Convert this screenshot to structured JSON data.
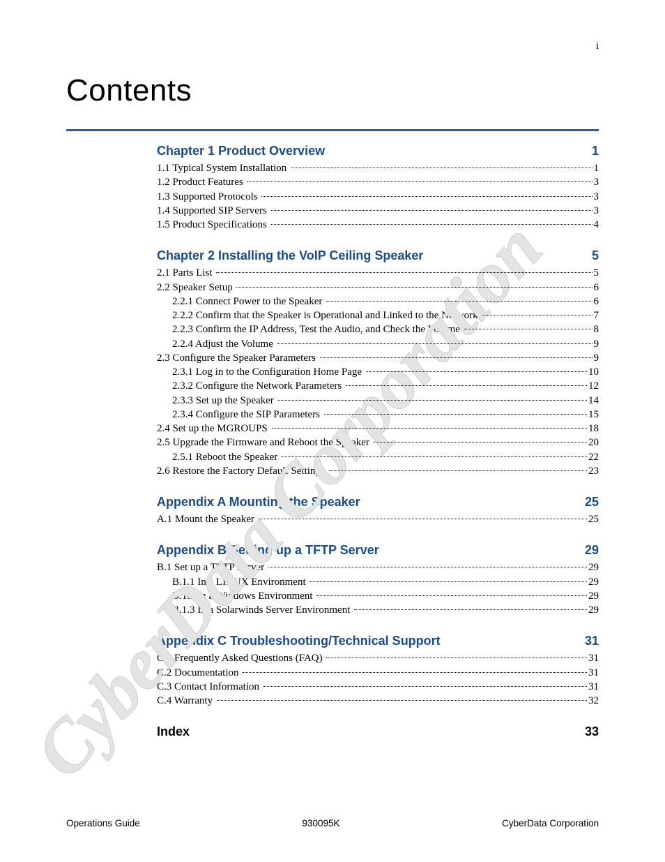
{
  "page_number_top": "i",
  "title": "Contents",
  "rule_color": "#2a5fa5",
  "heading_color": "#1a4b8c",
  "text_color": "#000000",
  "background_color": "#ffffff",
  "title_font": "Century Gothic",
  "body_font": "Book Antiqua",
  "title_fontsize": 44,
  "heading_fontsize": 18,
  "entry_fontsize": 15,
  "sections": [
    {
      "title": "Chapter 1 Product Overview",
      "page": "1",
      "entries": [
        {
          "indent": 0,
          "label": "1.1 Typical System Installation ",
          "page": "1"
        },
        {
          "indent": 0,
          "label": "1.2 Product Features ",
          "page": "3"
        },
        {
          "indent": 0,
          "label": "1.3 Supported Protocols ",
          "page": "3"
        },
        {
          "indent": 0,
          "label": "1.4 Supported SIP Servers ",
          "page": "3"
        },
        {
          "indent": 0,
          "label": "1.5 Product Specifications ",
          "page": "4"
        }
      ]
    },
    {
      "title": "Chapter 2 Installing the VoIP Ceiling Speaker",
      "page": "5",
      "entries": [
        {
          "indent": 0,
          "label": "2.1 Parts List ",
          "page": "5"
        },
        {
          "indent": 0,
          "label": "2.2 Speaker Setup ",
          "page": "6"
        },
        {
          "indent": 1,
          "label": "2.2.1 Connect Power to the Speaker ",
          "page": "6"
        },
        {
          "indent": 1,
          "label": "2.2.2 Confirm that the Speaker is Operational and Linked to the Network ",
          "page": "7"
        },
        {
          "indent": 1,
          "label": "2.2.3 Confirm the IP Address, Test the Audio, and Check the Volume ",
          "page": "8"
        },
        {
          "indent": 1,
          "label": "2.2.4 Adjust the Volume ",
          "page": "9"
        },
        {
          "indent": 0,
          "label": "2.3 Configure the Speaker Parameters ",
          "page": "9"
        },
        {
          "indent": 1,
          "label": "2.3.1 Log in to the Configuration Home Page ",
          "page": "10"
        },
        {
          "indent": 1,
          "label": "2.3.2 Configure the Network Parameters ",
          "page": "12"
        },
        {
          "indent": 1,
          "label": "2.3.3 Set up the Speaker ",
          "page": "14"
        },
        {
          "indent": 1,
          "label": "2.3.4 Configure the SIP Parameters ",
          "page": "15"
        },
        {
          "indent": 0,
          "label": "2.4 Set up the MGROUPS ",
          "page": "18"
        },
        {
          "indent": 0,
          "label": "2.5 Upgrade the Firmware and Reboot the Speaker ",
          "page": "20"
        },
        {
          "indent": 1,
          "label": "2.5.1 Reboot the Speaker ",
          "page": "22"
        },
        {
          "indent": 0,
          "label": "2.6 Restore the Factory Default Settings ",
          "page": "23"
        }
      ]
    },
    {
      "title": "Appendix A Mounting the Speaker",
      "page": "25",
      "entries": [
        {
          "indent": 0,
          "label": "A.1 Mount the Speaker ",
          "page": "25"
        }
      ]
    },
    {
      "title": "Appendix B Setting up a TFTP Server",
      "page": "29",
      "entries": [
        {
          "indent": 0,
          "label": "B.1 Set up a TFTP Server ",
          "page": "29"
        },
        {
          "indent": 1,
          "label": "B.1.1 In a LINUX Environment ",
          "page": "29"
        },
        {
          "indent": 1,
          "label": "B.1.2 In a Windows Environment ",
          "page": "29"
        },
        {
          "indent": 1,
          "label": "B.1.3 In a Solarwinds Server Environment ",
          "page": "29"
        }
      ]
    },
    {
      "title": "Appendix C Troubleshooting/Technical Support",
      "page": "31",
      "entries": [
        {
          "indent": 0,
          "label": "C.1 Frequently Asked Questions (FAQ) ",
          "page": "31"
        },
        {
          "indent": 0,
          "label": "C.2 Documentation ",
          "page": "31"
        },
        {
          "indent": 0,
          "label": "C.3 Contact Information ",
          "page": "31"
        },
        {
          "indent": 0,
          "label": "C.4 Warranty ",
          "page": "32"
        }
      ]
    }
  ],
  "index": {
    "title": "Index",
    "page": "33"
  },
  "footer": {
    "left": "Operations Guide",
    "center": "930095K",
    "right": "CyberData Corporation"
  },
  "watermark_text": "CyberData Corporation",
  "watermark_color": "#d9d9d9"
}
